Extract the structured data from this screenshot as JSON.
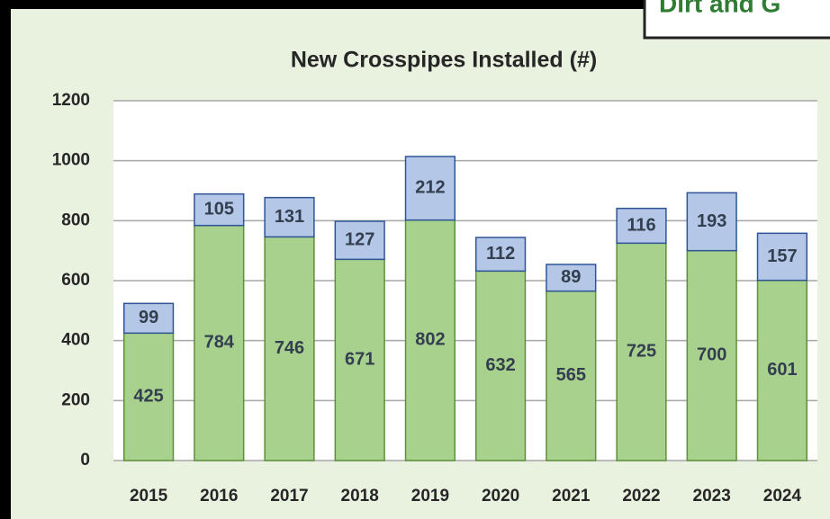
{
  "chart_data": {
    "type": "stacked_bar",
    "title": "New Crosspipes Installed (#)",
    "annotation": "Dirt and G",
    "categories": [
      "2015",
      "2016",
      "2017",
      "2018",
      "2019",
      "2020",
      "2021",
      "2022",
      "2023",
      "2024"
    ],
    "series": [
      {
        "color": "#a9d18e",
        "values": [
          425,
          784,
          746,
          671,
          802,
          632,
          565,
          725,
          700,
          601
        ]
      },
      {
        "color": "#b4c7e7",
        "values": [
          99,
          105,
          131,
          127,
          212,
          112,
          89,
          116,
          193,
          157
        ]
      }
    ],
    "ylim": [
      0,
      1200
    ],
    "yticks": [
      0,
      200,
      400,
      600,
      800,
      1000,
      1200
    ],
    "grid": true
  }
}
